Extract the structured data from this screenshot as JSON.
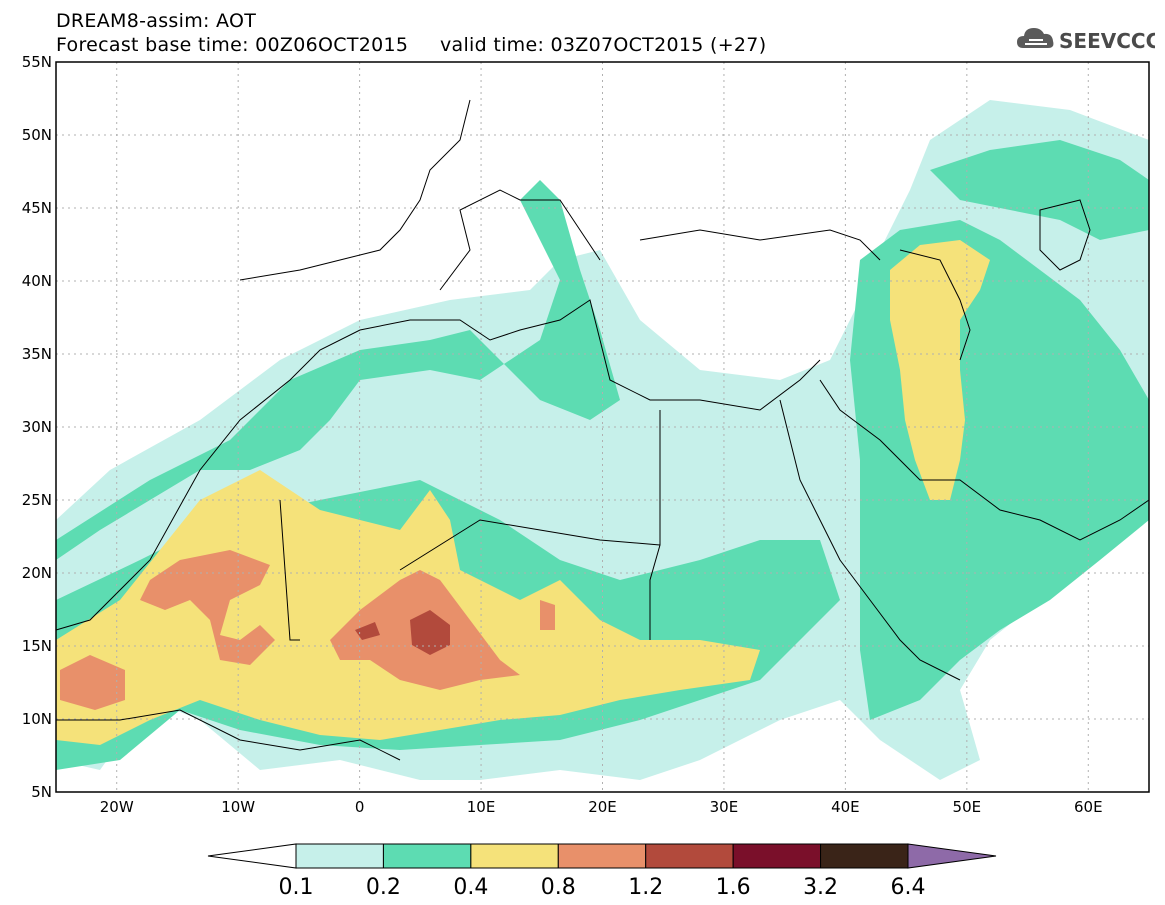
{
  "header": {
    "line1": "DREAM8-assim: AOT",
    "line2": "Forecast base time: 00Z06OCT2015     valid time: 03Z07OCT2015 (+27)"
  },
  "logo": {
    "text": "SEEVCCC",
    "icon": "cloud-icon"
  },
  "map": {
    "lon_range": [
      -25,
      65
    ],
    "lat_range": [
      5,
      55
    ],
    "lat_ticks": [
      "55N",
      "50N",
      "45N",
      "40N",
      "35N",
      "30N",
      "25N",
      "20N",
      "15N",
      "10N",
      "5N"
    ],
    "lat_values": [
      55,
      50,
      45,
      40,
      35,
      30,
      25,
      20,
      15,
      10,
      5
    ],
    "lon_ticks": [
      "20W",
      "10W",
      "0",
      "10E",
      "20E",
      "30E",
      "40E",
      "50E",
      "60E"
    ],
    "lon_values": [
      -20,
      -10,
      0,
      10,
      20,
      30,
      40,
      50,
      60
    ],
    "grid": true
  },
  "colorbar": {
    "levels": [
      "0.1",
      "0.2",
      "0.4",
      "0.8",
      "1.2",
      "1.6",
      "3.2",
      "6.4"
    ],
    "colors": [
      "#c6f0ea",
      "#5ddcb2",
      "#f5e27a",
      "#e8906a",
      "#b24a3c",
      "#7a0f2a",
      "#3a2418"
    ],
    "over_color": "#8e6aa8",
    "under_color": "#ffffff"
  }
}
